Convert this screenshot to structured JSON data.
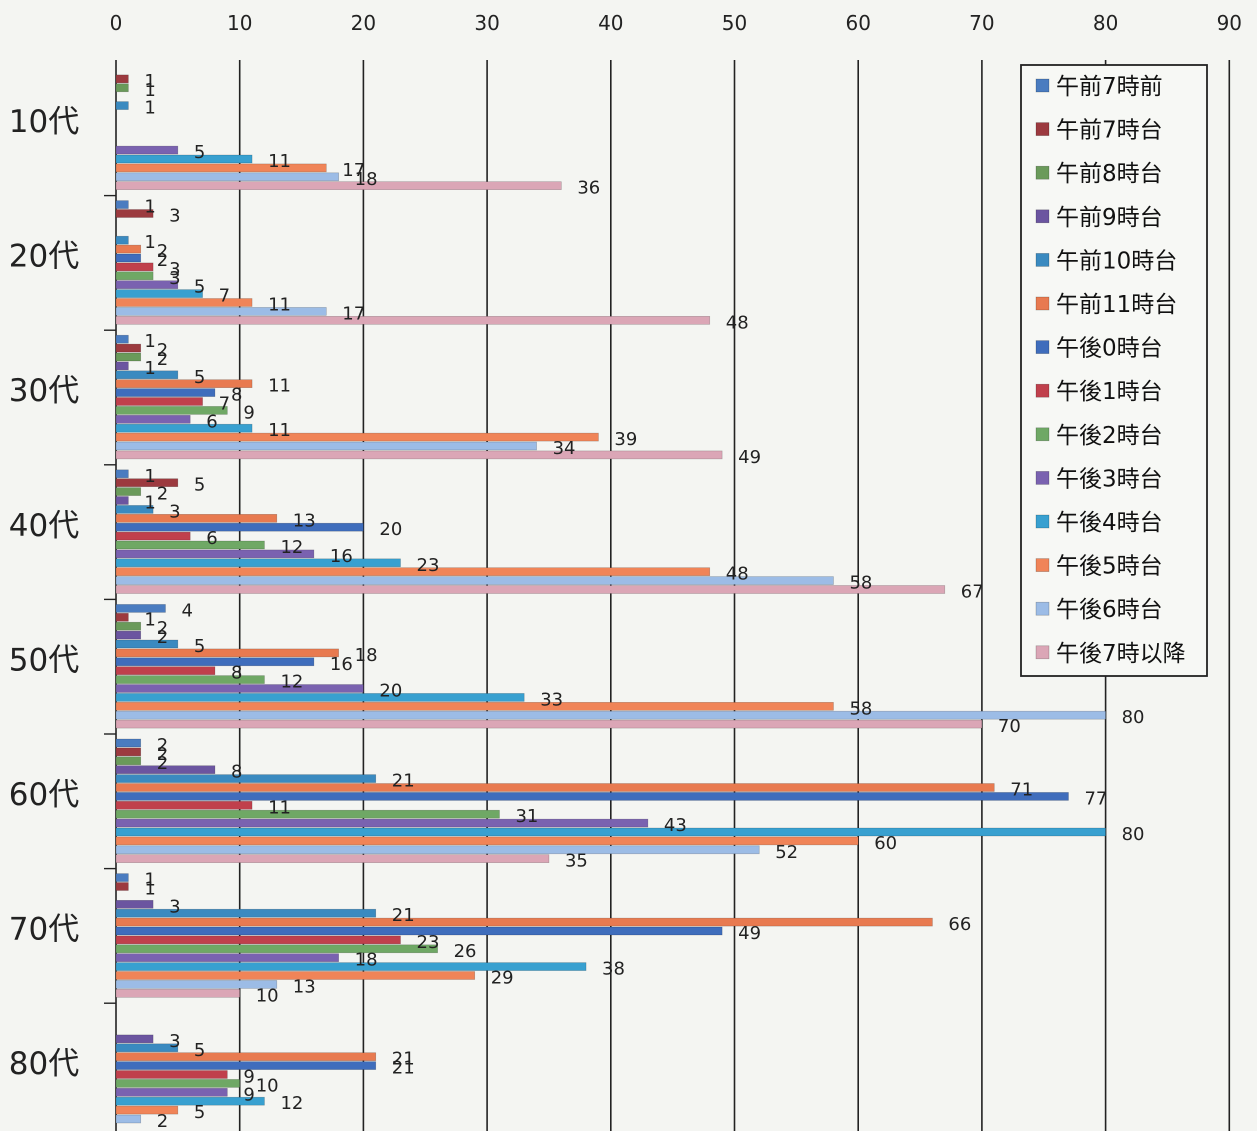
{
  "chart_data": {
    "type": "bar",
    "orientation": "horizontal",
    "title": "",
    "xlabel": "",
    "ylabel": "",
    "xlim": [
      0,
      90
    ],
    "x_ticks": [
      0,
      10,
      20,
      30,
      40,
      50,
      60,
      70,
      80,
      90
    ],
    "grid": "vertical",
    "legend_position": "top-right",
    "categories": [
      "10代",
      "20代",
      "30代",
      "40代",
      "50代",
      "60代",
      "70代",
      "80代"
    ],
    "series": [
      {
        "name": "午前7時前",
        "color": "#4a7cc0",
        "values": [
          null,
          1,
          1,
          1,
          4,
          2,
          1,
          null
        ]
      },
      {
        "name": "午前7時台",
        "color": "#9c3a3f",
        "values": [
          1,
          3,
          2,
          5,
          1,
          2,
          1,
          null
        ]
      },
      {
        "name": "午前8時台",
        "color": "#6a9a5a",
        "values": [
          1,
          null,
          2,
          2,
          2,
          2,
          null,
          null
        ]
      },
      {
        "name": "午前9時台",
        "color": "#6b55a0",
        "values": [
          null,
          null,
          1,
          1,
          2,
          8,
          3,
          3
        ]
      },
      {
        "name": "午前10時台",
        "color": "#3a8ac0",
        "values": [
          1,
          1,
          5,
          3,
          5,
          21,
          21,
          5
        ]
      },
      {
        "name": "午前11時台",
        "color": "#e87a50",
        "values": [
          null,
          2,
          11,
          13,
          18,
          71,
          66,
          21
        ]
      },
      {
        "name": "午後0時台",
        "color": "#3f6dbc",
        "values": [
          null,
          2,
          8,
          20,
          16,
          77,
          49,
          21
        ]
      },
      {
        "name": "午後1時台",
        "color": "#c0404c",
        "values": [
          null,
          3,
          7,
          6,
          8,
          11,
          23,
          9
        ]
      },
      {
        "name": "午後2時台",
        "color": "#6fa865",
        "values": [
          null,
          3,
          9,
          12,
          12,
          31,
          26,
          10
        ]
      },
      {
        "name": "午後3時台",
        "color": "#7a62b0",
        "values": [
          5,
          5,
          6,
          16,
          20,
          43,
          18,
          9
        ]
      },
      {
        "name": "午後4時台",
        "color": "#38a0d0",
        "values": [
          11,
          7,
          11,
          23,
          33,
          80,
          38,
          12
        ]
      },
      {
        "name": "午後5時台",
        "color": "#f08458",
        "values": [
          17,
          11,
          39,
          48,
          58,
          60,
          29,
          5
        ]
      },
      {
        "name": "午後6時台",
        "color": "#9cbce6",
        "values": [
          18,
          17,
          34,
          58,
          80,
          52,
          13,
          2
        ]
      },
      {
        "name": "午後7時以降",
        "color": "#dba6b6",
        "values": [
          36,
          48,
          49,
          67,
          70,
          35,
          10,
          null
        ]
      }
    ]
  }
}
